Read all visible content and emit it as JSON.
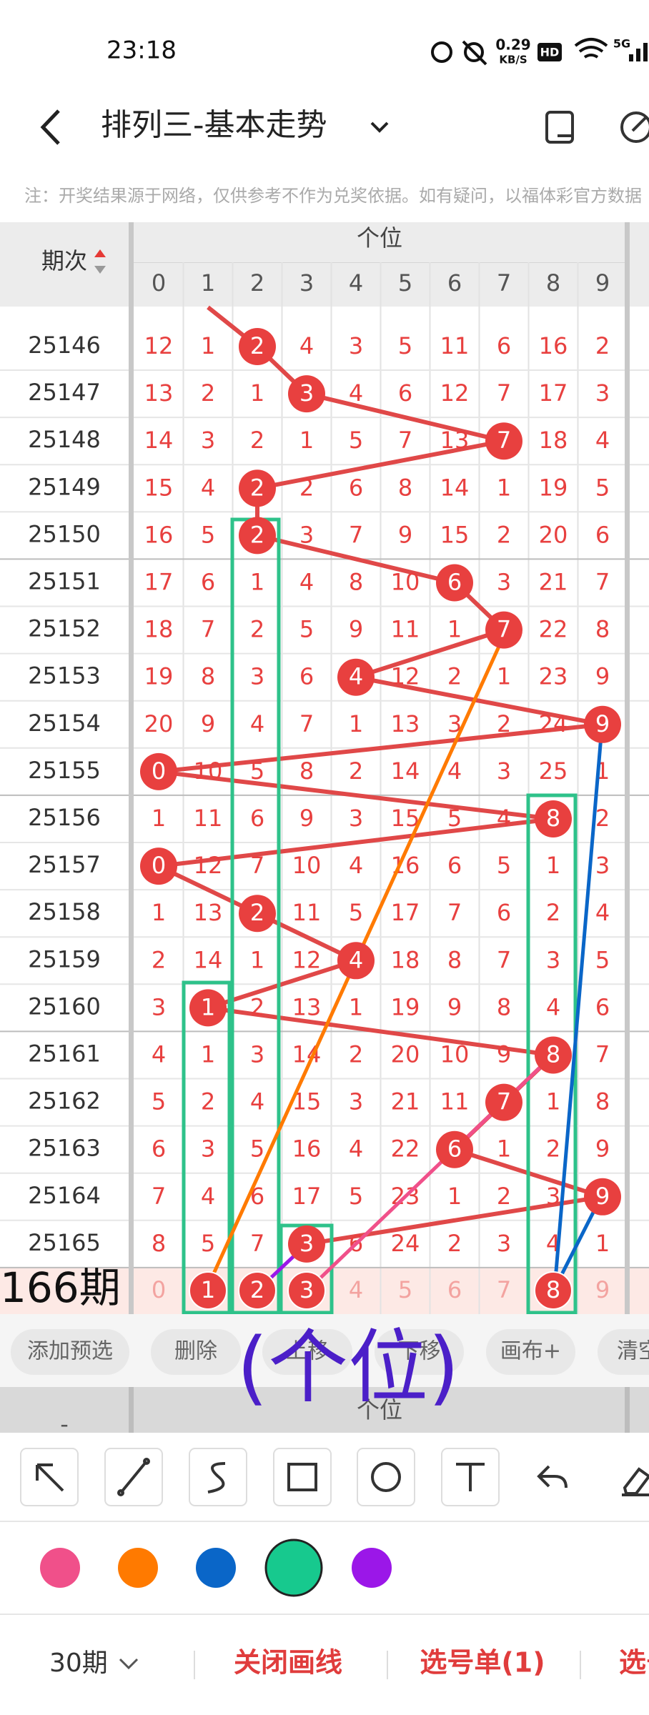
{
  "status_bar": {
    "time": "23:18",
    "speed_value": "0.29",
    "speed_unit": "KB/S",
    "hd": "HD",
    "network": "5G"
  },
  "header": {
    "title": "排列三-基本走势",
    "note": "注：开奖结果源于网络，仅供参考不作为兑奖依据。如有疑问，以福体彩官方数据"
  },
  "table": {
    "period_header": "期次",
    "group_header": "个位",
    "digits": [
      0,
      1,
      2,
      3,
      4,
      5,
      6,
      7,
      8,
      9
    ],
    "rows": [
      {
        "period": "25146",
        "values": [
          12,
          1,
          2,
          4,
          3,
          5,
          11,
          6,
          16,
          2
        ],
        "hit": 2
      },
      {
        "period": "25147",
        "values": [
          13,
          2,
          1,
          3,
          4,
          6,
          12,
          7,
          17,
          3
        ],
        "hit": 3
      },
      {
        "period": "25148",
        "values": [
          14,
          3,
          2,
          1,
          5,
          7,
          13,
          7,
          18,
          4
        ],
        "hit": 7
      },
      {
        "period": "25149",
        "values": [
          15,
          4,
          2,
          2,
          6,
          8,
          14,
          1,
          19,
          5
        ],
        "hit": 2
      },
      {
        "period": "25150",
        "values": [
          16,
          5,
          2,
          3,
          7,
          9,
          15,
          2,
          20,
          6
        ],
        "hit": 2
      },
      {
        "period": "25151",
        "values": [
          17,
          6,
          1,
          4,
          8,
          10,
          6,
          3,
          21,
          7
        ],
        "hit": 6
      },
      {
        "period": "25152",
        "values": [
          18,
          7,
          2,
          5,
          9,
          11,
          1,
          7,
          22,
          8
        ],
        "hit": 7
      },
      {
        "period": "25153",
        "values": [
          19,
          8,
          3,
          6,
          4,
          12,
          2,
          1,
          23,
          9
        ],
        "hit": 4
      },
      {
        "period": "25154",
        "values": [
          20,
          9,
          4,
          7,
          1,
          13,
          3,
          2,
          24,
          9
        ],
        "hit": 9
      },
      {
        "period": "25155",
        "values": [
          0,
          10,
          5,
          8,
          2,
          14,
          4,
          3,
          25,
          1
        ],
        "hit": 0
      },
      {
        "period": "25156",
        "values": [
          1,
          11,
          6,
          9,
          3,
          15,
          5,
          4,
          8,
          2
        ],
        "hit": 8
      },
      {
        "period": "25157",
        "values": [
          0,
          12,
          7,
          10,
          4,
          16,
          6,
          5,
          1,
          3
        ],
        "hit": 0
      },
      {
        "period": "25158",
        "values": [
          1,
          13,
          2,
          11,
          5,
          17,
          7,
          6,
          2,
          4
        ],
        "hit": 2
      },
      {
        "period": "25159",
        "values": [
          2,
          14,
          1,
          12,
          4,
          18,
          8,
          7,
          3,
          5
        ],
        "hit": 4
      },
      {
        "period": "25160",
        "values": [
          3,
          1,
          2,
          13,
          1,
          19,
          9,
          8,
          4,
          6
        ],
        "hit": 1
      },
      {
        "period": "25161",
        "values": [
          4,
          1,
          3,
          14,
          2,
          20,
          10,
          9,
          8,
          7
        ],
        "hit": 8
      },
      {
        "period": "25162",
        "values": [
          5,
          2,
          4,
          15,
          3,
          21,
          11,
          7,
          1,
          8
        ],
        "hit": 7
      },
      {
        "period": "25163",
        "values": [
          6,
          3,
          5,
          16,
          4,
          22,
          6,
          1,
          2,
          9
        ],
        "hit": 6
      },
      {
        "period": "25164",
        "values": [
          7,
          4,
          6,
          17,
          5,
          23,
          1,
          2,
          3,
          9
        ],
        "hit": 9
      },
      {
        "period": "25165",
        "values": [
          8,
          5,
          7,
          3,
          6,
          24,
          2,
          3,
          4,
          1
        ],
        "hit": 3
      }
    ],
    "predict": {
      "label": "166期",
      "values": [
        0,
        1,
        2,
        3,
        4,
        5,
        6,
        7,
        8,
        9
      ],
      "hits": [
        1,
        2,
        3,
        8
      ]
    }
  },
  "buttons": [
    "添加预选",
    "删除",
    "上移",
    "下移",
    "画布+",
    "清空"
  ],
  "annotation": "(个位)",
  "lower_header": "个位",
  "lower_period": "-",
  "palette": [
    "#f0508a",
    "#ff7a00",
    "#0a66c8",
    "#17c98e",
    "#9b17e8"
  ],
  "selected_color": 3,
  "footer": {
    "periods": "30期",
    "close": "关闭画线",
    "ticket": "选号单(1)",
    "more": "选号"
  }
}
